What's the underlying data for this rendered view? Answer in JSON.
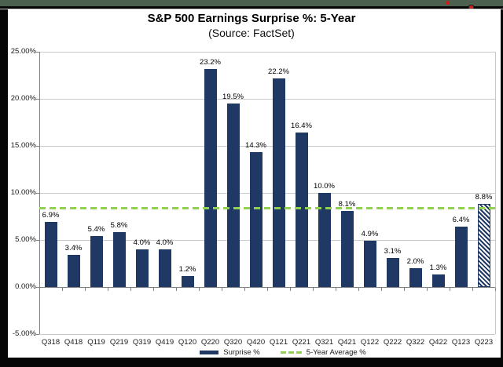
{
  "chart_data": {
    "type": "bar",
    "title": "S&P 500 Earnings Surprise %: 5-Year",
    "subtitle": "(Source: FactSet)",
    "categories": [
      "Q318",
      "Q418",
      "Q119",
      "Q219",
      "Q319",
      "Q419",
      "Q120",
      "Q220",
      "Q320",
      "Q420",
      "Q121",
      "Q221",
      "Q321",
      "Q421",
      "Q122",
      "Q222",
      "Q322",
      "Q422",
      "Q123",
      "Q223"
    ],
    "values": [
      6.9,
      3.4,
      5.4,
      5.8,
      4.0,
      4.0,
      1.2,
      23.2,
      19.5,
      14.3,
      22.2,
      16.4,
      10.0,
      8.1,
      4.9,
      3.1,
      2.0,
      1.3,
      6.4,
      8.8
    ],
    "bar_labels": [
      "6.9%",
      "3.4%",
      "5.4%",
      "5.8%",
      "4.0%",
      "4.0%",
      "1.2%",
      "23.2%",
      "19.5%",
      "14.3%",
      "22.2%",
      "16.4%",
      "10.0%",
      "8.1%",
      "4.9%",
      "3.1%",
      "2.0%",
      "1.3%",
      "6.4%",
      "8.8%"
    ],
    "highlight_last_bar": "hatched",
    "series_label": "Surprise %",
    "average_line": {
      "value": 8.4,
      "label": "5-Year Average %"
    },
    "ylim": [
      -5,
      25
    ],
    "y_tick_step": 5,
    "y_tick_labels": [
      "25.00%",
      "20.00%",
      "15.00%",
      "10.00%",
      "5.00%",
      "0.00%",
      "-5.00%"
    ],
    "grid": "horizontal",
    "legend_position": "bottom",
    "colors": {
      "bar": "#1F3864",
      "average_line": "#92D050",
      "gridline": "#C9C9C9",
      "axis": "#808080",
      "text": "#000000",
      "background": "#FFFFFF",
      "frame": "#060606",
      "top_band": "#4B604E"
    }
  }
}
